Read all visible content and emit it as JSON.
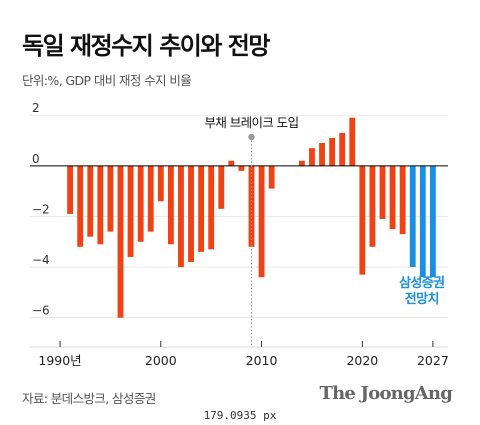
{
  "title": "독일 재정수지 추이와 전망",
  "subtitle": "단위:%, GDP 대비 재정 수지 비율",
  "source": "자료: 분데스방크, 삼성증권",
  "logo": "The JoongAng",
  "footnote": "179.0935 px",
  "colors": {
    "actual": "#f04214",
    "forecast": "#1a8fe3",
    "zero_line": "#000000",
    "grid": "#dddddd",
    "marker": "#999999"
  },
  "chart_data": {
    "type": "bar",
    "x": [
      1991,
      1992,
      1993,
      1994,
      1995,
      1996,
      1997,
      1998,
      1999,
      2000,
      2001,
      2002,
      2003,
      2004,
      2005,
      2006,
      2007,
      2008,
      2009,
      2010,
      2011,
      2012,
      2013,
      2014,
      2015,
      2016,
      2017,
      2018,
      2019,
      2020,
      2021,
      2022,
      2023,
      2024,
      2025,
      2026,
      2027
    ],
    "values": [
      -1.9,
      -3.2,
      -2.8,
      -3.1,
      -2.6,
      -6.0,
      -3.6,
      -3.0,
      -2.6,
      -1.4,
      -3.1,
      -4.0,
      -3.8,
      -3.4,
      -3.3,
      -1.7,
      0.2,
      -0.2,
      -3.2,
      -4.4,
      -0.9,
      0.0,
      0.0,
      0.2,
      0.7,
      0.9,
      1.1,
      1.3,
      1.9,
      -4.3,
      -3.2,
      -2.1,
      -2.5,
      -2.7,
      -4.0,
      -4.4,
      -4.4
    ],
    "forecast_from": 2025,
    "ylim": [
      -7,
      2.6
    ],
    "y_ticks": [
      2,
      0,
      -2,
      -4,
      -6
    ],
    "y_tick_labels": [
      "2",
      "0",
      "−2",
      "−4",
      "−6"
    ],
    "x_ticks": [
      1990,
      2000,
      2010,
      2020,
      2027
    ],
    "x_tick_labels": [
      "1990년",
      "2000",
      "2010",
      "2020",
      "2027"
    ],
    "annotation": {
      "label": "부채 브레이크 도입",
      "x": 2009
    },
    "forecast_label": [
      "삼성증권",
      "전망치"
    ]
  }
}
